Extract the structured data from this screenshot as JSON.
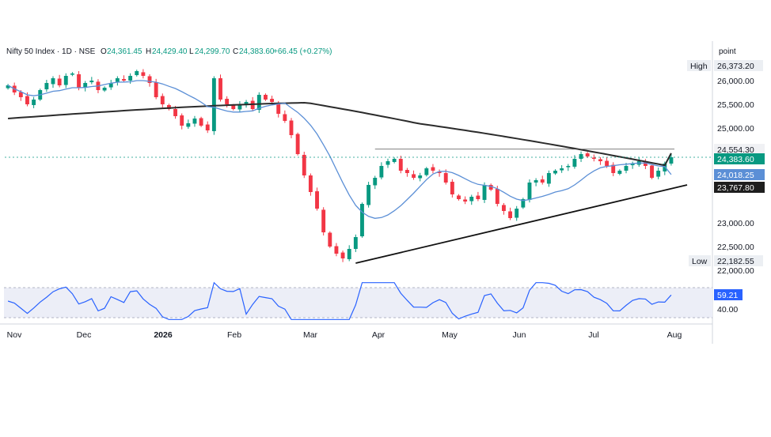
{
  "header": {
    "instrument": "Nifty 50 Index · 1D · NSE",
    "open_label": "O",
    "open": "24,361.45",
    "high_label": "H",
    "high": "24,429.40",
    "low_label": "L",
    "low": "24,299.70",
    "close_label": "C",
    "close": "24,383.60",
    "change": "+66.45 (+0.27%)"
  },
  "colors": {
    "up": "#089981",
    "down": "#f23645",
    "sma_short": "#5b8fd6",
    "sma_long": "#2b2b2b",
    "rsi": "#2962ff",
    "rsi_band": "#eceef7",
    "trendline": "#111111",
    "price_line": "#089981",
    "text": "#131722",
    "axis_text": "#131722"
  },
  "price_axis": {
    "header": "point",
    "ticks": [
      "26,000.00",
      "25,500.00",
      "25,000.00",
      "23,000.00",
      "22,500.00",
      "22,000.00"
    ],
    "high_label": "High",
    "high_value": "26,373.20",
    "low_label": "Low",
    "low_value": "22,182.55",
    "last_price": "24,383.60",
    "level_a": "24,554.30",
    "sma_short_value": "24,018.25",
    "sma_long_value": "23,767.80"
  },
  "rsi_axis": {
    "ticks": [
      "40.00"
    ],
    "current": "59.21"
  },
  "time_axis": {
    "labels": [
      "Nov",
      "Dec",
      "2026",
      "Feb",
      "Mar",
      "Apr",
      "May",
      "Jun",
      "Jul",
      "Aug"
    ]
  },
  "chart_data": {
    "type": "candlestick",
    "title": "Nifty 50 Index · 1D · NSE",
    "ylim": [
      22000,
      26450
    ],
    "x_months": [
      "Nov",
      "Dec",
      "2026",
      "Feb",
      "Mar",
      "Apr",
      "May",
      "Jun",
      "Jul",
      "Aug"
    ],
    "candles_sample_close": [
      25900,
      25750,
      25650,
      25500,
      25600,
      25800,
      25950,
      26050,
      25900,
      26100,
      26150,
      25850,
      25950,
      26000,
      25800,
      25850,
      25950,
      26050,
      26000,
      26100,
      26200,
      26100,
      25950,
      25650,
      25500,
      25400,
      25250,
      25050,
      25100,
      25200,
      25050,
      24950,
      26050,
      25600,
      25500,
      25400,
      25500,
      25550,
      25400,
      25700,
      25600,
      25550,
      25300,
      25150,
      24850,
      24450,
      24000,
      23650,
      23300,
      22800,
      22500,
      22350,
      22250,
      22450,
      22700,
      23400,
      23800,
      23950,
      24200,
      24300,
      24350,
      24100,
      24050,
      23950,
      24000,
      24150,
      24100,
      24050,
      23850,
      23600,
      23500,
      23450,
      23550,
      23500,
      23800,
      23700,
      23400,
      23250,
      23100,
      23300,
      23500,
      23850,
      23900,
      23850,
      24050,
      24100,
      24150,
      24200,
      24350,
      24450,
      24400,
      24350,
      24300,
      24200,
      24050,
      24100,
      24200,
      24250,
      24300,
      24200,
      23950,
      24100,
      24250,
      24383.6
    ],
    "sma_short_last": 24018.25,
    "sma_long_last": 23767.8,
    "resistance_level": 24554.3,
    "trendline": [
      {
        "x": "Apr",
        "y": 22150
      },
      {
        "x": "Aug",
        "y": 23800
      }
    ],
    "high": 26373.2,
    "low": 22182.55,
    "last_close": 24383.6,
    "rsi": {
      "current": 59.21,
      "band": [
        30,
        70
      ],
      "tick": 40
    }
  }
}
